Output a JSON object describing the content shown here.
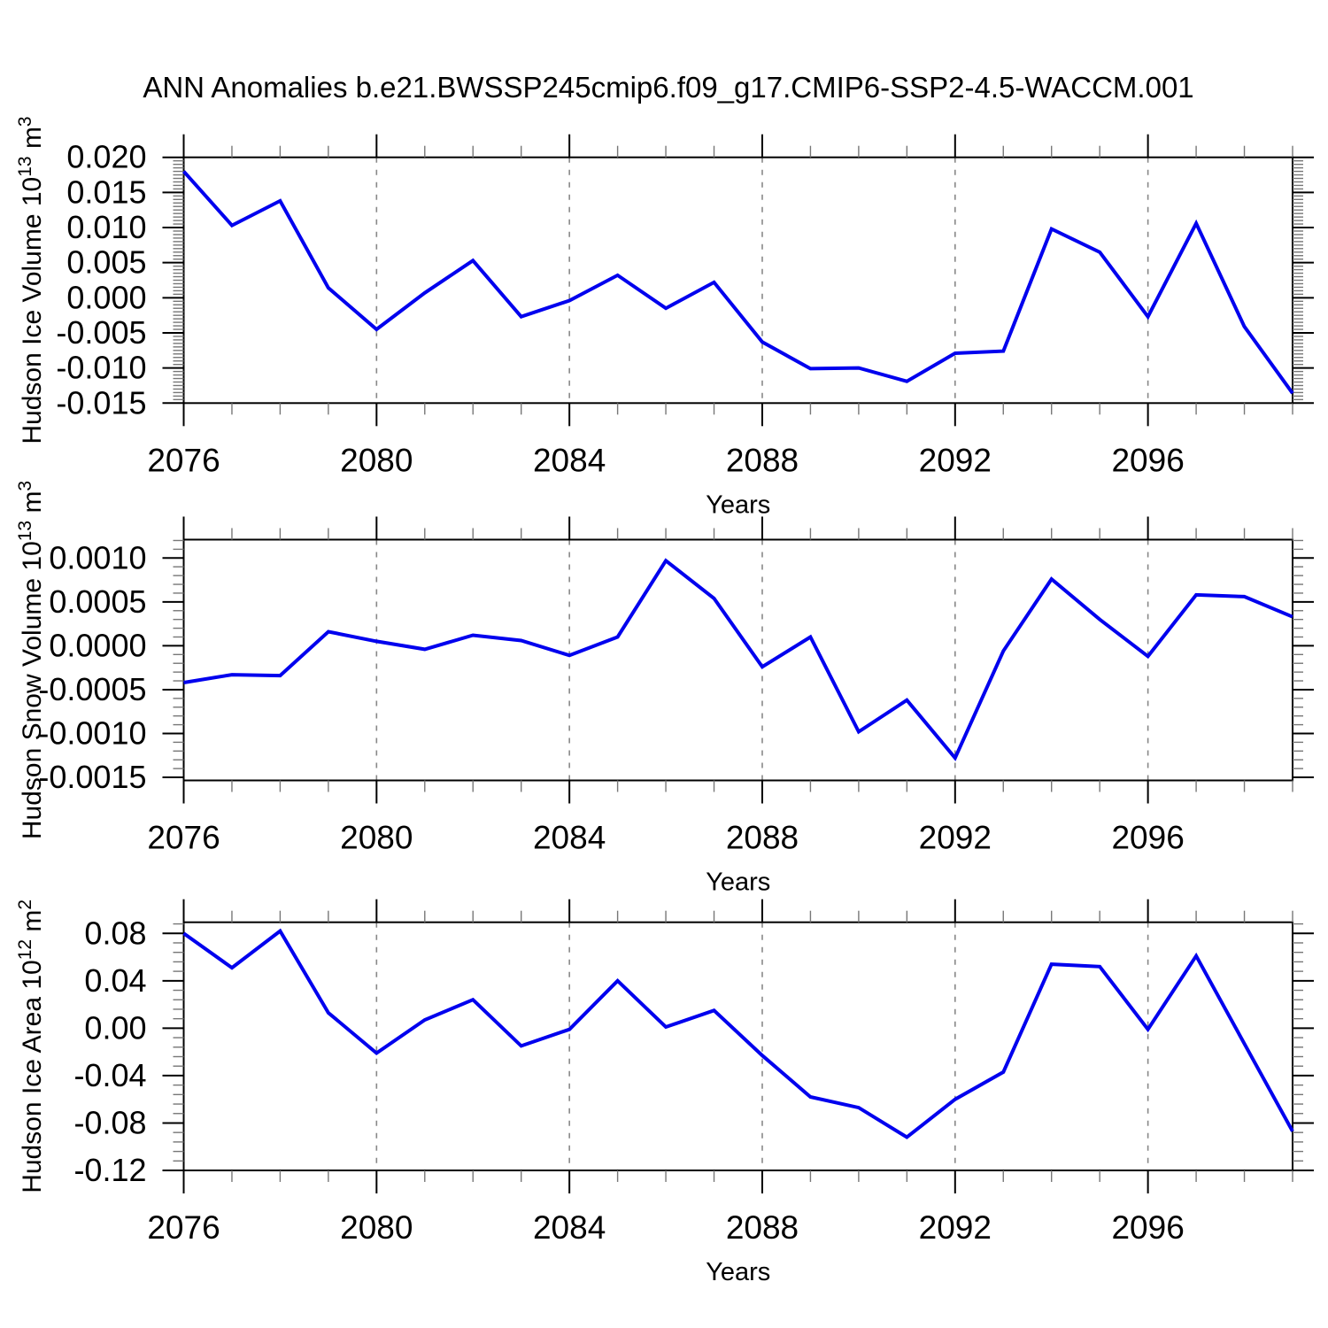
{
  "title": "ANN Anomalies b.e21.BWSSP245cmip6.f09_g17.CMIP6-SSP2-4.5-WACCM.001",
  "line_color": "#0000EE",
  "grid_color": "#888888",
  "chart_data": [
    {
      "type": "line",
      "title": "",
      "xlabel": "Years",
      "ylabel": "Hudson Ice Volume 10^13 m^3",
      "ylabel_segments": [
        {
          "t": "Hudson Ice Volume 10"
        },
        {
          "t": "13",
          "sup": true
        },
        {
          "t": " m"
        },
        {
          "t": "3",
          "sup": true
        }
      ],
      "x": [
        2076,
        2077,
        2078,
        2079,
        2080,
        2081,
        2082,
        2083,
        2084,
        2085,
        2086,
        2087,
        2088,
        2089,
        2090,
        2091,
        2092,
        2093,
        2094,
        2095,
        2096,
        2097,
        2098,
        2099
      ],
      "values": [
        0.018,
        0.0103,
        0.0138,
        0.0014,
        -0.0045,
        0.0007,
        0.0053,
        -0.0027,
        -0.0004,
        0.0032,
        -0.0015,
        0.0022,
        -0.0063,
        -0.0101,
        -0.01,
        -0.0119,
        -0.0079,
        -0.0076,
        0.0098,
        0.0065,
        -0.0027,
        0.0106,
        -0.0041,
        -0.0136
      ],
      "xlim": [
        2076,
        2099
      ],
      "ylim": [
        -0.015,
        0.02
      ],
      "xticks": [
        2076,
        2080,
        2084,
        2088,
        2092,
        2096
      ],
      "xtick_labels": [
        "2076",
        "2080",
        "2084",
        "2088",
        "2092",
        "2096"
      ],
      "xminor_step": 1,
      "yticks": [
        0.02,
        0.015,
        0.01,
        0.005,
        0.0,
        -0.005,
        -0.01,
        -0.015
      ],
      "ytick_labels": [
        "0.020",
        "0.015",
        "0.010",
        "0.005",
        "0.000",
        "-0.005",
        "-0.010",
        "-0.015"
      ],
      "yminor_step": 0.0005,
      "grid_x": [
        2080,
        2084,
        2088,
        2092,
        2096
      ],
      "grid": "vertical-dashed",
      "legend": "none"
    },
    {
      "type": "line",
      "title": "",
      "xlabel": "Years",
      "ylabel": "Hudson Snow Volume 10^13 m^3",
      "ylabel_segments": [
        {
          "t": "Hudson Snow Volume 10"
        },
        {
          "t": "13",
          "sup": true
        },
        {
          "t": " m"
        },
        {
          "t": "3",
          "sup": true
        }
      ],
      "x": [
        2076,
        2077,
        2078,
        2079,
        2080,
        2081,
        2082,
        2083,
        2084,
        2085,
        2086,
        2087,
        2088,
        2089,
        2090,
        2091,
        2092,
        2093,
        2094,
        2095,
        2096,
        2097,
        2098,
        2099
      ],
      "values": [
        -0.00042,
        -0.00033,
        -0.00034,
        0.00016,
        5e-05,
        -4e-05,
        0.00012,
        6e-05,
        -0.00011,
        0.0001,
        0.00097,
        0.00054,
        -0.00024,
        0.0001,
        -0.00098,
        -0.00062,
        -0.00128,
        -6e-05,
        0.00076,
        0.0003,
        -0.00012,
        0.00058,
        0.00056,
        0.00033
      ],
      "xlim": [
        2076,
        2099
      ],
      "ylim": [
        -0.001535,
        0.00121
      ],
      "xticks": [
        2076,
        2080,
        2084,
        2088,
        2092,
        2096
      ],
      "xtick_labels": [
        "2076",
        "2080",
        "2084",
        "2088",
        "2092",
        "2096"
      ],
      "xminor_step": 1,
      "yticks": [
        0.001,
        0.0005,
        0.0,
        -0.0005,
        -0.001,
        -0.0015
      ],
      "ytick_labels": [
        "0.0010",
        "0.0005",
        "0.0000",
        "-0.0005",
        "-0.0010",
        "-0.0015"
      ],
      "yminor_step": 0.0001,
      "grid_x": [
        2080,
        2084,
        2088,
        2092,
        2096
      ],
      "grid": "vertical-dashed",
      "legend": "none"
    },
    {
      "type": "line",
      "title": "",
      "xlabel": "Years",
      "ylabel": "Hudson Ice Area 10^12 m^2",
      "ylabel_segments": [
        {
          "t": "Hudson Ice Area 10"
        },
        {
          "t": "12",
          "sup": true
        },
        {
          "t": " m"
        },
        {
          "t": "2",
          "sup": true
        }
      ],
      "x": [
        2076,
        2077,
        2078,
        2079,
        2080,
        2081,
        2082,
        2083,
        2084,
        2085,
        2086,
        2087,
        2088,
        2089,
        2090,
        2091,
        2092,
        2093,
        2094,
        2095,
        2096,
        2097,
        2098,
        2099
      ],
      "values": [
        0.08,
        0.051,
        0.082,
        0.013,
        -0.021,
        0.007,
        0.024,
        -0.015,
        -0.001,
        0.04,
        0.001,
        0.015,
        -0.023,
        -0.058,
        -0.067,
        -0.092,
        -0.06,
        -0.037,
        0.054,
        0.052,
        -0.001,
        0.061,
        -0.013,
        -0.087
      ],
      "xlim": [
        2076,
        2099
      ],
      "ylim": [
        -0.12,
        0.0894
      ],
      "xticks": [
        2076,
        2080,
        2084,
        2088,
        2092,
        2096
      ],
      "xtick_labels": [
        "2076",
        "2080",
        "2084",
        "2088",
        "2092",
        "2096"
      ],
      "xminor_step": 1,
      "yticks": [
        0.08,
        0.04,
        0.0,
        -0.04,
        -0.08,
        -0.12
      ],
      "ytick_labels": [
        "0.08",
        "0.04",
        "0.00",
        "-0.04",
        "-0.08",
        "-0.12"
      ],
      "yminor_step": 0.008,
      "grid_x": [
        2080,
        2084,
        2088,
        2092,
        2096
      ],
      "grid": "vertical-dashed",
      "legend": "none"
    }
  ]
}
